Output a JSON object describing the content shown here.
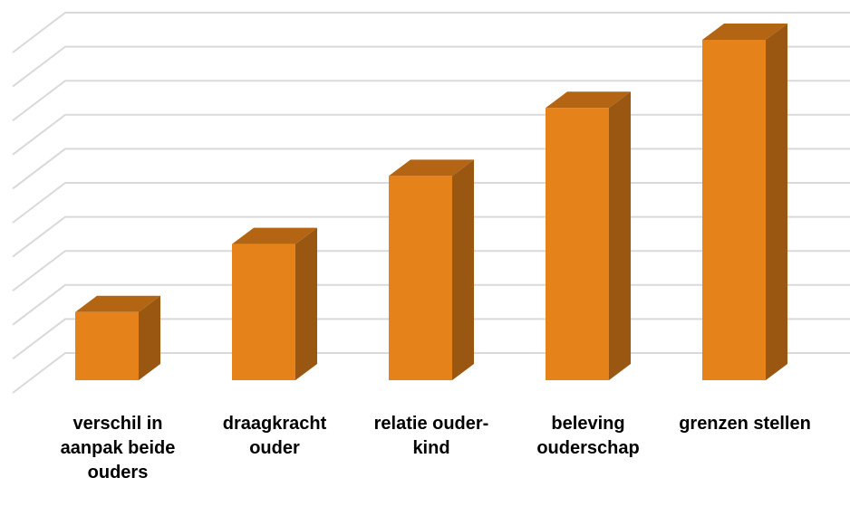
{
  "chart_data": {
    "type": "bar3d",
    "categories": [
      "verschil in aanpak beide ouders",
      "draagkracht ouder",
      "relatie ouder-kind",
      "beleving ouderschap",
      "grenzen stellen"
    ],
    "values": [
      2,
      4,
      6,
      8,
      10
    ],
    "color": "#e6821a",
    "ylim": [
      0,
      10
    ],
    "yticks": [
      0,
      1,
      2,
      3,
      4,
      5,
      6,
      7,
      8,
      9,
      10
    ],
    "grid": true
  }
}
